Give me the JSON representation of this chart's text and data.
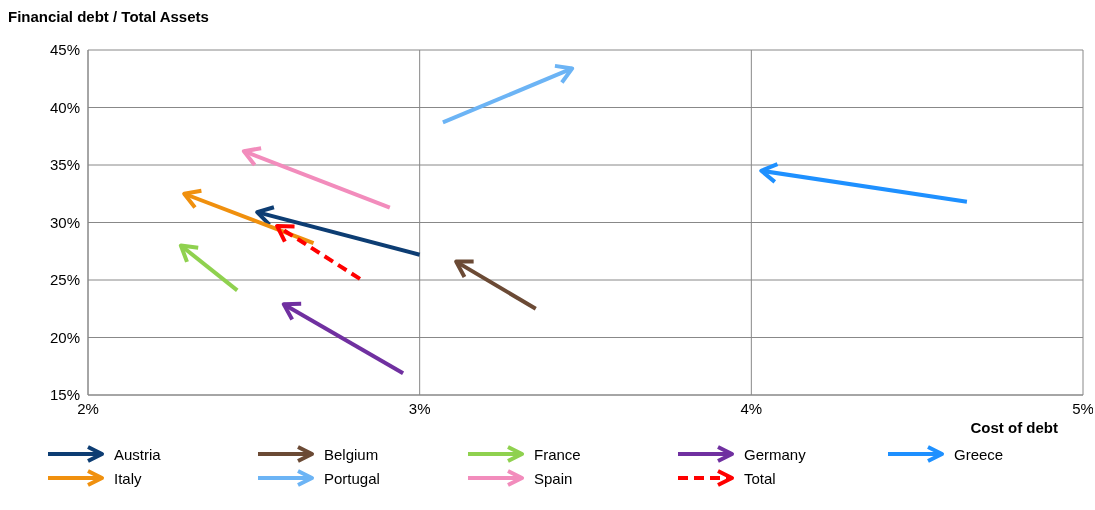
{
  "chart_data": {
    "type": "line",
    "ylabel": "Financial debt / Total Assets",
    "xlabel": "Cost of debt",
    "xlim": [
      2,
      5
    ],
    "xticks": [
      {
        "value": 2,
        "label": "2%"
      },
      {
        "value": 3,
        "label": "3%"
      },
      {
        "value": 4,
        "label": "4%"
      },
      {
        "value": 5,
        "label": "5%"
      }
    ],
    "ylim": [
      15,
      45
    ],
    "yticks": [
      {
        "value": 15,
        "label": "15%"
      },
      {
        "value": 20,
        "label": "20%"
      },
      {
        "value": 25,
        "label": "25%"
      },
      {
        "value": 30,
        "label": "30%"
      },
      {
        "value": 35,
        "label": "35%"
      },
      {
        "value": 40,
        "label": "40%"
      },
      {
        "value": 45,
        "label": "45%"
      }
    ],
    "grid": true,
    "legend": "bottom",
    "series": [
      {
        "name": "Austria",
        "color": "#0d3d73",
        "x": [
          3.0,
          2.51
        ],
        "values": [
          27.2,
          30.9
        ]
      },
      {
        "name": "Belgium",
        "color": "#6b4a35",
        "x": [
          3.35,
          3.11
        ],
        "values": [
          22.5,
          26.6
        ]
      },
      {
        "name": "France",
        "color": "#8fd14f",
        "x": [
          2.45,
          2.28
        ],
        "values": [
          24.1,
          28.0
        ]
      },
      {
        "name": "Germany",
        "color": "#7030a0",
        "x": [
          2.95,
          2.59
        ],
        "values": [
          16.9,
          22.9
        ]
      },
      {
        "name": "Greece",
        "color": "#1e90ff",
        "x": [
          4.65,
          4.03
        ],
        "values": [
          31.8,
          34.5
        ]
      },
      {
        "name": "Italy",
        "color": "#f0900e",
        "x": [
          2.68,
          2.29
        ],
        "values": [
          28.2,
          32.5
        ]
      },
      {
        "name": "Portugal",
        "color": "#6cb4f5",
        "x": [
          3.07,
          3.46
        ],
        "values": [
          38.7,
          43.4
        ]
      },
      {
        "name": "Spain",
        "color": "#f28cbc",
        "x": [
          2.91,
          2.47
        ],
        "values": [
          31.3,
          36.2
        ]
      },
      {
        "name": "Total",
        "color": "#ff0000",
        "x": [
          2.82,
          2.57
        ],
        "values": [
          25.1,
          29.7
        ],
        "line_style": "dashed"
      }
    ]
  }
}
